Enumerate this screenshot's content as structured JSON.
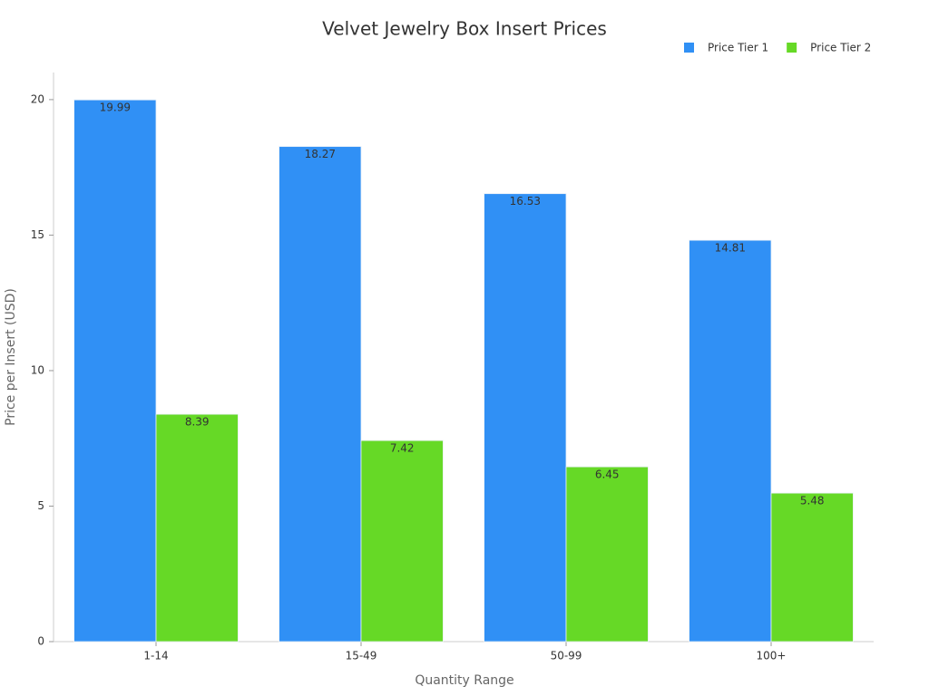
{
  "chart_data": {
    "type": "bar",
    "title": "Velvet Jewelry Box Insert Prices",
    "x_label": "Quantity Range",
    "y_label": "Price per Insert (USD)",
    "categories": [
      "1-14",
      "15-49",
      "50-99",
      "100+"
    ],
    "series": [
      {
        "name": "Price Tier 1",
        "color": "#3090f5",
        "values": [
          19.99,
          18.27,
          16.53,
          14.81
        ]
      },
      {
        "name": "Price Tier 2",
        "color": "#66d926",
        "values": [
          8.39,
          7.42,
          6.45,
          5.48
        ]
      }
    ],
    "ylim": [
      0,
      21
    ],
    "yticks": [
      0,
      5,
      10,
      15,
      20
    ],
    "grid": false,
    "legend": "top-right"
  }
}
